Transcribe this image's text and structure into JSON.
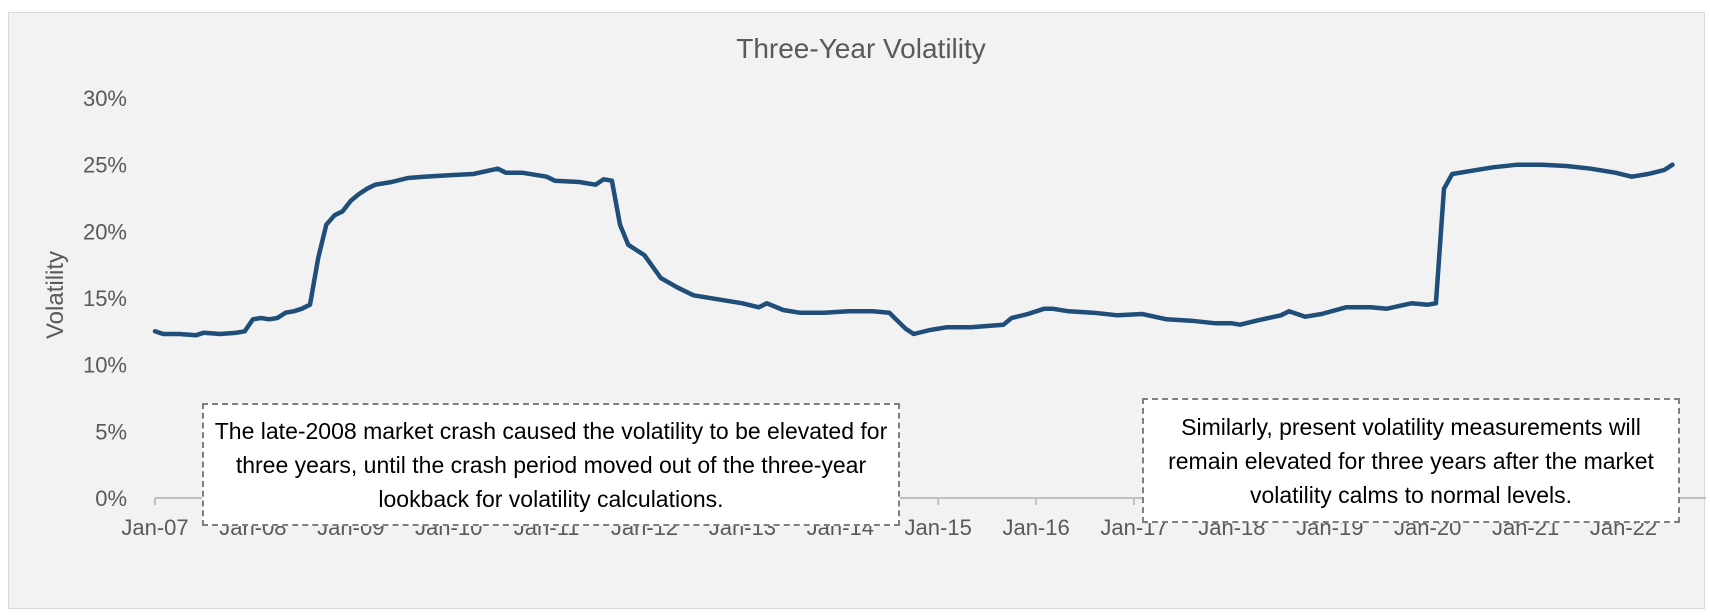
{
  "chart_data": {
    "type": "line",
    "title": "Three-Year Volatility",
    "xlabel": "",
    "ylabel": "Volatility",
    "ylim": [
      0,
      0.3
    ],
    "yticks": [
      "0%",
      "5%",
      "10%",
      "15%",
      "20%",
      "25%",
      "30%"
    ],
    "xticks": [
      "Jan-07",
      "Jan-08",
      "Jan-09",
      "Jan-10",
      "Jan-11",
      "Jan-12",
      "Jan-13",
      "Jan-14",
      "Jan-15",
      "Jan-16",
      "Jan-17",
      "Jan-18",
      "Jan-19",
      "Jan-20",
      "Jan-21",
      "Jan-22"
    ],
    "grid": false,
    "legend": "none",
    "series_color": "#1f4e79",
    "series": [
      {
        "x": [
          "2007-01",
          "2007-02",
          "2007-04",
          "2007-06",
          "2007-07",
          "2007-09",
          "2007-11",
          "2007-12",
          "2008-01",
          "2008-02",
          "2008-03",
          "2008-04",
          "2008-05",
          "2008-06",
          "2008-07",
          "2008-08",
          "2008-09",
          "2008-10",
          "2008-11",
          "2008-12",
          "2009-01",
          "2009-02",
          "2009-03",
          "2009-04",
          "2009-06",
          "2009-08",
          "2009-10",
          "2010-01",
          "2010-04",
          "2010-07",
          "2010-08",
          "2010-10",
          "2011-01",
          "2011-02",
          "2011-05",
          "2011-07",
          "2011-08",
          "2011-09",
          "2011-10",
          "2011-11",
          "2012-01",
          "2012-03",
          "2012-05",
          "2012-07",
          "2012-10",
          "2013-01",
          "2013-03",
          "2013-04",
          "2013-06",
          "2013-08",
          "2013-11",
          "2014-02",
          "2014-05",
          "2014-07",
          "2014-08",
          "2014-09",
          "2014-10",
          "2014-12",
          "2015-02",
          "2015-05",
          "2015-09",
          "2015-10",
          "2015-12",
          "2016-02",
          "2016-03",
          "2016-05",
          "2016-08",
          "2016-11",
          "2017-02",
          "2017-05",
          "2017-08",
          "2017-11",
          "2018-01",
          "2018-02",
          "2018-04",
          "2018-07",
          "2018-08",
          "2018-10",
          "2018-12",
          "2019-03",
          "2019-06",
          "2019-08",
          "2019-11",
          "2020-01",
          "2020-02",
          "2020-03",
          "2020-04",
          "2020-06",
          "2020-09",
          "2020-12",
          "2021-03",
          "2021-06",
          "2021-09",
          "2021-12",
          "2022-02",
          "2022-04",
          "2022-06",
          "2022-07"
        ],
        "values": [
          0.125,
          0.123,
          0.123,
          0.122,
          0.124,
          0.123,
          0.124,
          0.125,
          0.134,
          0.135,
          0.134,
          0.135,
          0.139,
          0.14,
          0.142,
          0.145,
          0.18,
          0.205,
          0.212,
          0.215,
          0.223,
          0.228,
          0.232,
          0.235,
          0.237,
          0.24,
          0.241,
          0.242,
          0.243,
          0.247,
          0.244,
          0.244,
          0.241,
          0.238,
          0.237,
          0.235,
          0.239,
          0.238,
          0.205,
          0.19,
          0.182,
          0.165,
          0.158,
          0.152,
          0.149,
          0.146,
          0.143,
          0.146,
          0.141,
          0.139,
          0.139,
          0.14,
          0.14,
          0.139,
          0.133,
          0.127,
          0.123,
          0.126,
          0.128,
          0.128,
          0.13,
          0.135,
          0.138,
          0.142,
          0.142,
          0.14,
          0.139,
          0.137,
          0.138,
          0.134,
          0.133,
          0.131,
          0.131,
          0.13,
          0.133,
          0.137,
          0.14,
          0.136,
          0.138,
          0.143,
          0.143,
          0.142,
          0.146,
          0.145,
          0.146,
          0.232,
          0.243,
          0.245,
          0.248,
          0.25,
          0.25,
          0.249,
          0.247,
          0.244,
          0.241,
          0.243,
          0.246,
          0.25
        ]
      }
    ]
  },
  "annotations": {
    "left": "The late-2008 market crash caused the volatility to be elevated for three years, until the crash period moved out of the three-year lookback for volatility calculations.",
    "right": "Similarly, present volatility measurements will remain elevated for three years after the market volatility calms to normal levels."
  }
}
